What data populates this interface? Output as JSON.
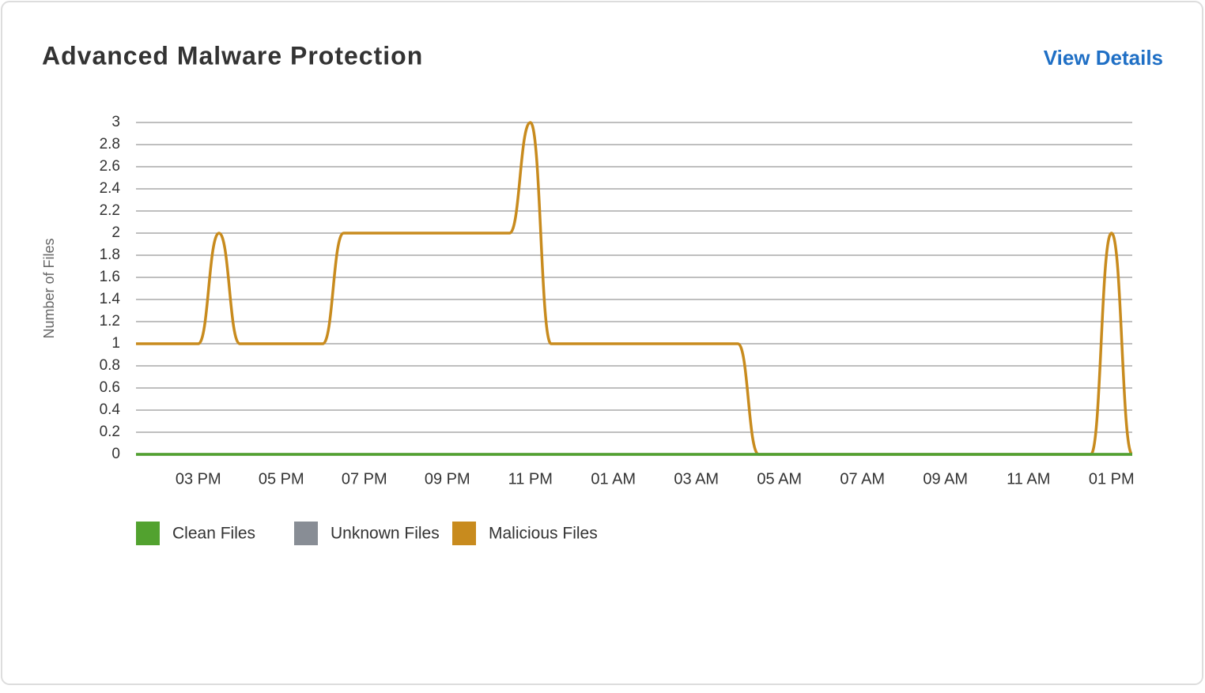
{
  "header": {
    "title": "Advanced Malware Protection",
    "link": "View Details"
  },
  "chart_data": {
    "type": "line",
    "y_label": "Number of Files",
    "x": [
      13.5,
      15,
      15.5,
      16,
      18,
      18.5,
      22.5,
      23,
      23.5,
      28,
      28.5,
      36.5,
      37,
      37.5
    ],
    "xlim": [
      13.5,
      37.5
    ],
    "xticks": [
      {
        "value": 15,
        "label": "03 PM"
      },
      {
        "value": 17,
        "label": "05 PM"
      },
      {
        "value": 19,
        "label": "07 PM"
      },
      {
        "value": 21,
        "label": "09 PM"
      },
      {
        "value": 23,
        "label": "11 PM"
      },
      {
        "value": 25,
        "label": "01 AM"
      },
      {
        "value": 27,
        "label": "03 AM"
      },
      {
        "value": 29,
        "label": "05 AM"
      },
      {
        "value": 31,
        "label": "07 AM"
      },
      {
        "value": 33,
        "label": "09 AM"
      },
      {
        "value": 35,
        "label": "11 AM"
      },
      {
        "value": 37,
        "label": "01 PM"
      }
    ],
    "ylim": [
      0,
      3
    ],
    "yticks": [
      0,
      0.2,
      0.4,
      0.6,
      0.8,
      1,
      1.2,
      1.4,
      1.6,
      1.8,
      2,
      2.2,
      2.4,
      2.6,
      2.8,
      3
    ],
    "grid": true,
    "series": [
      {
        "name": "Clean Files",
        "color": "#52a22f",
        "values": [
          0,
          0,
          0,
          0,
          0,
          0,
          0,
          0,
          0,
          0,
          0,
          0,
          0,
          0
        ]
      },
      {
        "name": "Unknown Files",
        "color": "#888d95",
        "values": [
          0,
          0,
          0,
          0,
          0,
          0,
          0,
          0,
          0,
          0,
          0,
          0,
          0,
          0
        ]
      },
      {
        "name": "Malicious Files",
        "color": "#c88b1e",
        "values": [
          1,
          1,
          2,
          1,
          1,
          2,
          2,
          3,
          1,
          1,
          0,
          0,
          2,
          0
        ]
      }
    ]
  }
}
